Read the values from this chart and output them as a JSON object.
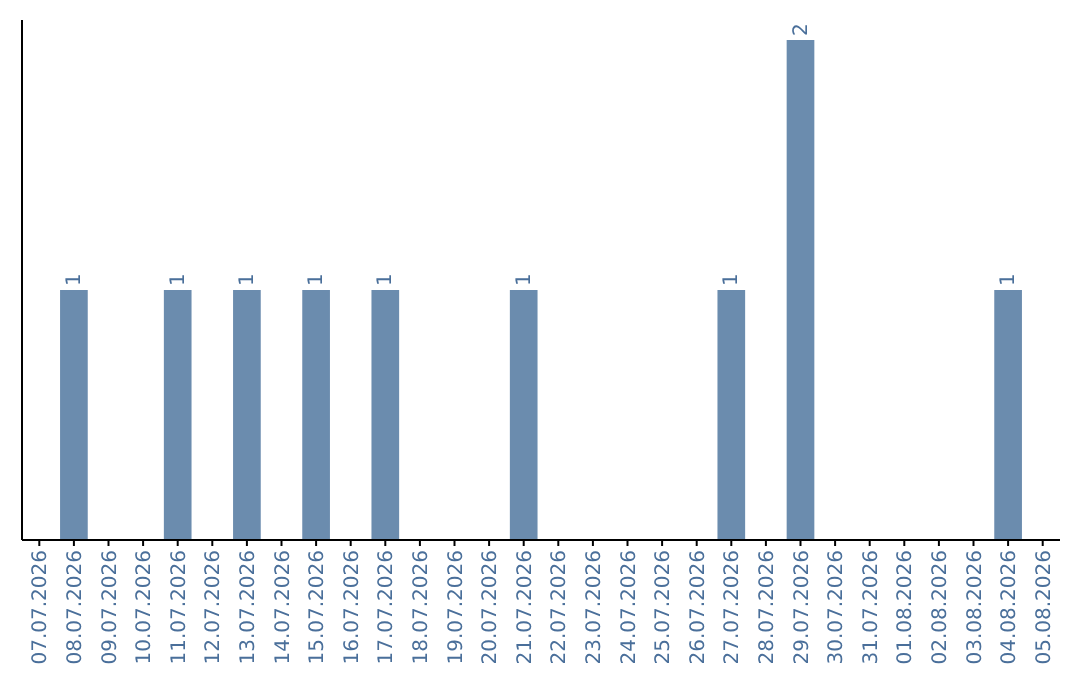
{
  "chart_data": {
    "type": "bar",
    "categories": [
      "07.07.2026",
      "08.07.2026",
      "09.07.2026",
      "10.07.2026",
      "11.07.2026",
      "12.07.2026",
      "13.07.2026",
      "14.07.2026",
      "15.07.2026",
      "16.07.2026",
      "17.07.2026",
      "18.07.2026",
      "19.07.2026",
      "20.07.2026",
      "21.07.2026",
      "22.07.2026",
      "23.07.2026",
      "24.07.2026",
      "25.07.2026",
      "26.07.2026",
      "27.07.2026",
      "28.07.2026",
      "29.07.2026",
      "30.07.2026",
      "31.07.2026",
      "01.08.2026",
      "02.08.2026",
      "03.08.2026",
      "04.08.2026",
      "05.08.2026"
    ],
    "values": [
      0,
      1,
      0,
      0,
      1,
      0,
      1,
      0,
      1,
      0,
      1,
      0,
      0,
      0,
      1,
      0,
      0,
      0,
      0,
      0,
      1,
      0,
      2,
      0,
      0,
      0,
      0,
      0,
      1,
      0
    ],
    "value_labels": [
      null,
      "1",
      null,
      null,
      "1",
      null,
      "1",
      null,
      "1",
      null,
      "1",
      null,
      null,
      null,
      "1",
      null,
      null,
      null,
      null,
      null,
      "1",
      null,
      "2",
      null,
      null,
      null,
      null,
      null,
      "1",
      null
    ],
    "color": "#6b8cae",
    "tick_labels": "x"
  }
}
